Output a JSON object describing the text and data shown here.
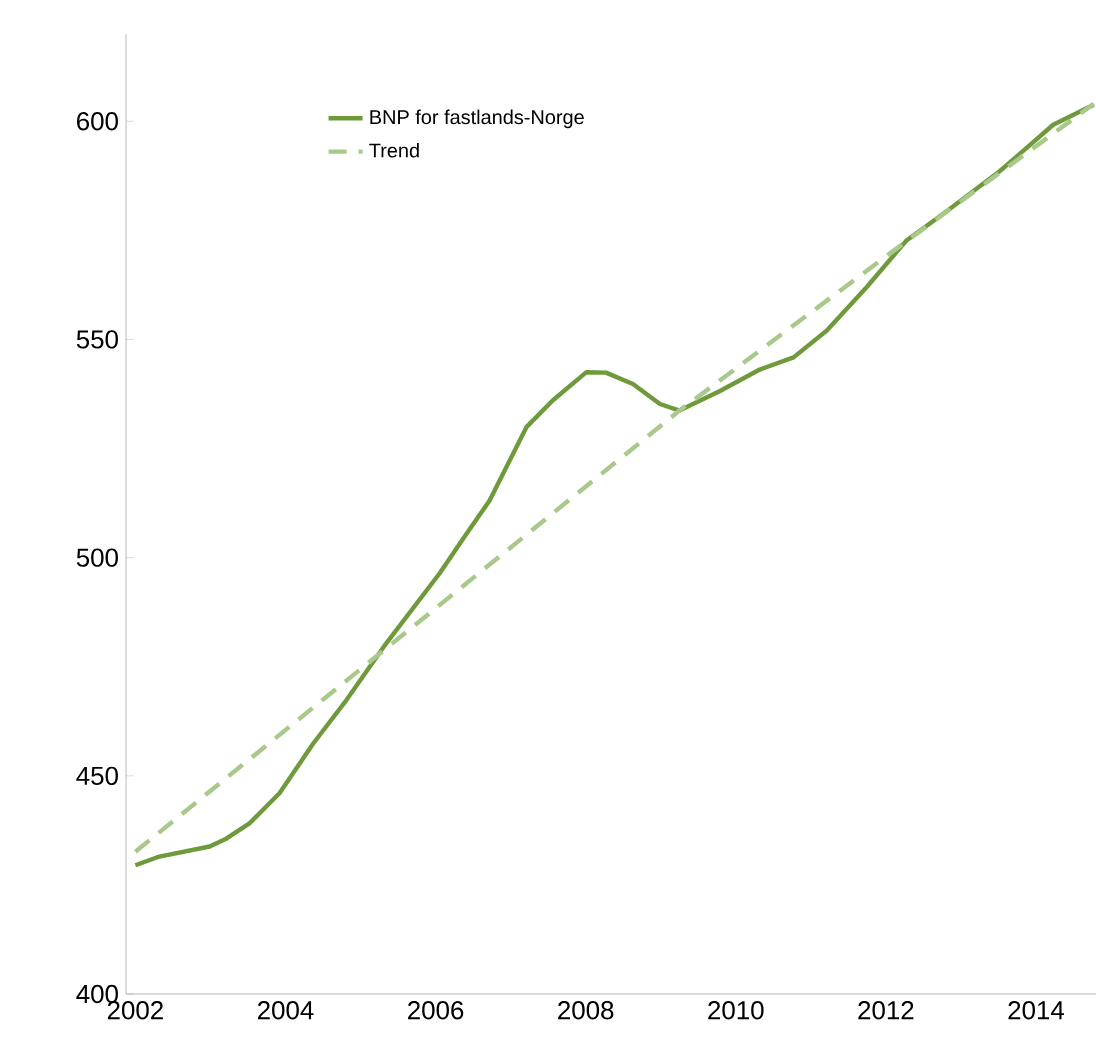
{
  "chart_data": {
    "type": "line",
    "xlim": [
      2001.875,
      2014.8
    ],
    "ylim": [
      400,
      620
    ],
    "xticks": [
      2002,
      2004,
      2006,
      2008,
      2010,
      2012,
      2014
    ],
    "yticks": [
      400,
      450,
      500,
      550,
      600
    ],
    "grid": false,
    "legend": "top left",
    "series": [
      {
        "name": "BNP for fastlands-Norge",
        "color": "#6f9a3c",
        "line_style": "solid",
        "x": [
          2002.0,
          2002.32,
          2002.99,
          2003.21,
          2003.52,
          2003.92,
          2004.37,
          2004.81,
          2005.34,
          2006.05,
          2006.41,
          2006.72,
          2007.21,
          2007.56,
          2008.01,
          2008.27,
          2008.63,
          2008.99,
          2009.25,
          2009.79,
          2010.32,
          2010.77,
          2011.21,
          2011.74,
          2012.27,
          2012.81,
          2013.52,
          2014.23,
          2014.77
        ],
        "values": [
          429.5,
          431.5,
          433.8,
          435.6,
          439.1,
          446.0,
          457.4,
          467.3,
          480.3,
          496.3,
          505.4,
          513.1,
          529.9,
          536.0,
          542.5,
          542.4,
          539.8,
          535.2,
          533.7,
          538.2,
          543.1,
          545.9,
          552.0,
          561.9,
          572.6,
          579.4,
          588.6,
          599.2,
          603.8
        ]
      },
      {
        "name": "Trend",
        "color": "#a8c98a",
        "line_style": "dashed",
        "x": [
          2002.0,
          2009.25,
          2012.1,
          2014.77
        ],
        "values": [
          432.6,
          533.7,
          570.3,
          604.0
        ]
      }
    ]
  }
}
